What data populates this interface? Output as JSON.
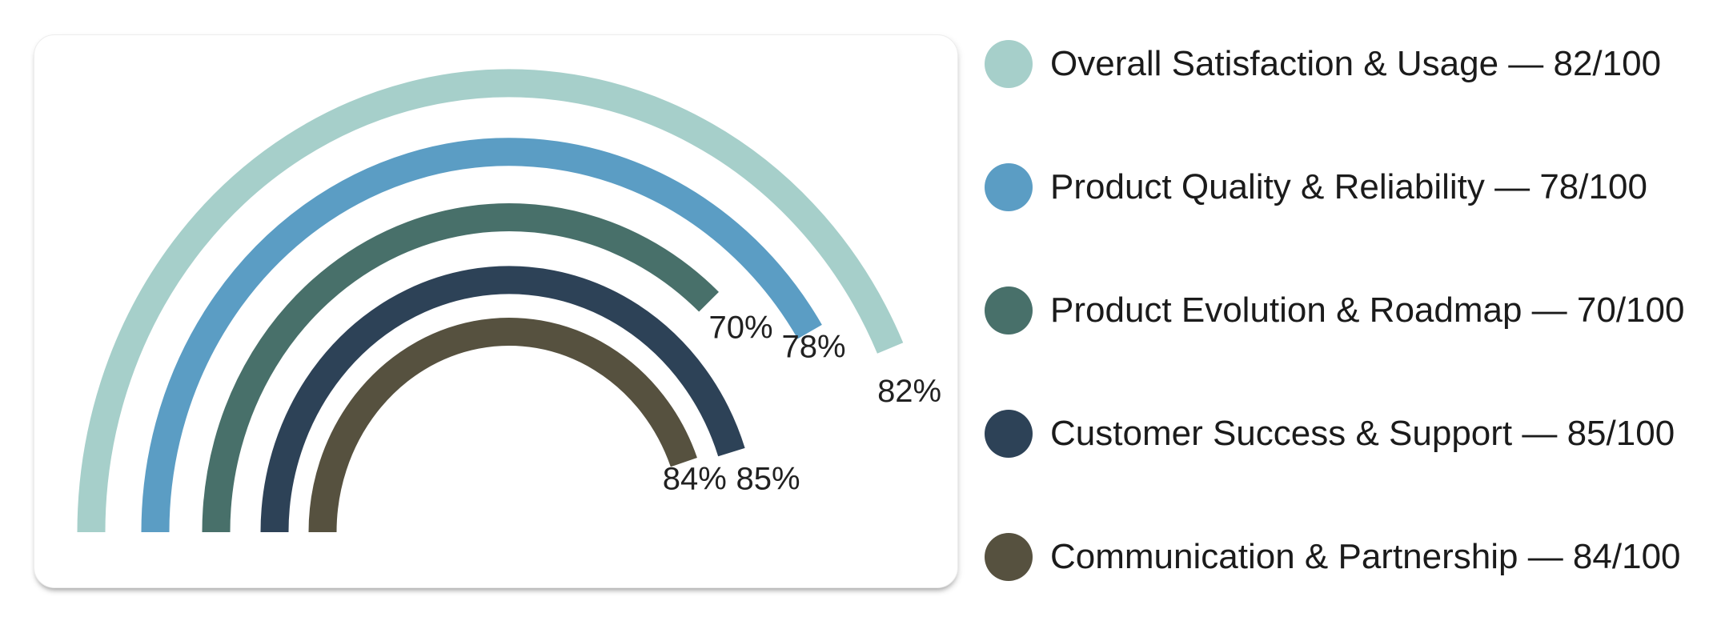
{
  "page": {
    "background": "#ffffff"
  },
  "chart_data": {
    "type": "radial-bar",
    "variant": "concentric-semicircle-gauge",
    "title": "",
    "scale": {
      "min": 0,
      "max": 100,
      "unit": "%"
    },
    "start_angle_deg": 180,
    "direction": "clockwise",
    "ring_order": "outermost-first",
    "legend_position": "right",
    "categories": [
      "Overall Satisfaction & Usage",
      "Product Quality & Reliability",
      "Product Evolution & Roadmap",
      "Customer Success & Support",
      "Communication & Partnership"
    ],
    "values": [
      82,
      78,
      70,
      85,
      84
    ],
    "rings": [
      {
        "name": "Overall Satisfaction & Usage",
        "value": 82,
        "arc_label": "82%",
        "color": "#a6cfca"
      },
      {
        "name": "Product Quality & Reliability",
        "value": 78,
        "arc_label": "78%",
        "color": "#5b9dc4"
      },
      {
        "name": "Product Evolution & Roadmap",
        "value": 70,
        "arc_label": "70%",
        "color": "#48706a"
      },
      {
        "name": "Customer Success & Support",
        "value": 85,
        "arc_label": "85%",
        "color": "#2d4257"
      },
      {
        "name": "Communication & Partnership",
        "value": 84,
        "arc_label": "84%",
        "color": "#56513f"
      }
    ],
    "arc_label_color": "#212121"
  },
  "legend": {
    "items": [
      {
        "label": "Overall Satisfaction & Usage — 82/100",
        "color": "#a6cfca"
      },
      {
        "label": "Product Quality & Reliability — 78/100",
        "color": "#5b9dc4"
      },
      {
        "label": "Product Evolution & Roadmap — 70/100",
        "color": "#48706a"
      },
      {
        "label": "Customer Success & Support — 85/100",
        "color": "#2d4257"
      },
      {
        "label": "Communication & Partnership — 84/100",
        "color": "#56513f"
      }
    ]
  }
}
